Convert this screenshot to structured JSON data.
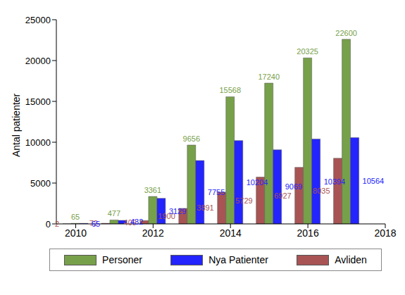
{
  "chart_data": {
    "type": "bar",
    "x": [
      2010,
      2011,
      2012,
      2013,
      2014,
      2015,
      2016,
      2017
    ],
    "xlim": [
      2009.5,
      2018
    ],
    "xticks": [
      2010,
      2012,
      2014,
      2016,
      2018
    ],
    "ylabel": "Antal patienter",
    "ylim": [
      0,
      25000
    ],
    "yticks": [
      0,
      5000,
      10000,
      15000,
      20000,
      25000
    ],
    "grid": false,
    "legend": "bottom",
    "data_labels": true,
    "series": [
      {
        "name": "Personer",
        "color": "#77a04a",
        "values": [
          65,
          477,
          3361,
          9656,
          15568,
          17240,
          20325,
          22600
        ]
      },
      {
        "name": "Nya Patienter",
        "color": "#2424ff",
        "values": [
          65,
          432,
          3129,
          7755,
          10204,
          9069,
          10394,
          10564
        ]
      },
      {
        "name": "Avliden",
        "color": "#a85454",
        "values": [
          2,
          72,
          409,
          1900,
          3891,
          5729,
          6927,
          8035
        ]
      }
    ]
  }
}
